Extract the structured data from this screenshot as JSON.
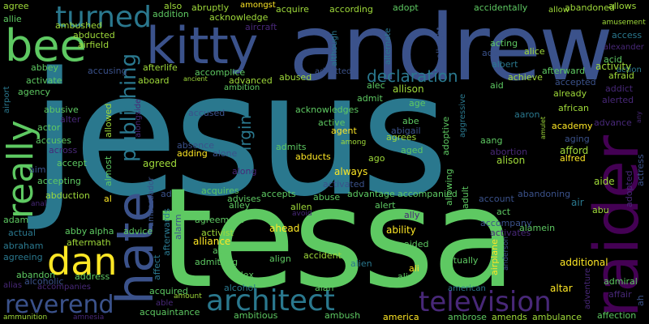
{
  "background": "#000000",
  "palette": {
    "teal": "#2a788e",
    "green": "#5ec962",
    "indigo": "#3b528b",
    "purple": "#440154",
    "yellow": "#fde725",
    "lime": "#9fda3a",
    "aqua": "#22a884",
    "plum": "#482878"
  },
  "words": [
    "jesus",
    "tessa",
    "andrew",
    "raider",
    "kitty",
    "hate",
    "bee",
    "really",
    "dan",
    "turned",
    "publishing",
    "architect",
    "television",
    "reverend",
    "declaration",
    "virgin",
    "agree",
    "allie",
    "ambushed",
    "abducted",
    "airfield",
    "abbey",
    "activate",
    "agency",
    "abusive",
    "alter",
    "accuses",
    "across",
    "actor",
    "aim",
    "accepting",
    "abduction",
    "adam",
    "anal",
    "actual",
    "abraham",
    "agreeing",
    "abandon",
    "alias",
    "alcoholic",
    "ammunition",
    "amnesia",
    "abby",
    "alpha",
    "advice",
    "aftermath",
    "address",
    "accompanies",
    "affect",
    "afterwards",
    "alarm",
    "acquired",
    "able",
    "amount",
    "acquaintance",
    "ambitious",
    "ambassador",
    "alcohol",
    "alex",
    "admitting",
    "ace",
    "alliance",
    "activist",
    "agreement",
    "ahead",
    "alley",
    "accident",
    "align",
    "alan",
    "alien",
    "ambush",
    "america",
    "addition",
    "also",
    "abruptly",
    "amongst",
    "acknowledge",
    "acquire",
    "according",
    "adopt",
    "accidentally",
    "allow",
    "abandoned",
    "allows",
    "amusement",
    "access",
    "aircraft",
    "although",
    "albright",
    "alternate",
    "acting",
    "add",
    "alice",
    "acid",
    "alexander",
    "action",
    "albert",
    "afterlife",
    "accusing",
    "accomplice",
    "aboard",
    "advanced",
    "ancient",
    "ambition",
    "abused",
    "admitted",
    "alec",
    "allison",
    "achieve",
    "afterward",
    "aid",
    "accepted",
    "activity",
    "afraid",
    "addict",
    "already",
    "alerted",
    "aggressive",
    "alongside",
    "accused",
    "acknowledges",
    "admit",
    "active",
    "abe",
    "abigail",
    "age",
    "adoptive",
    "agent",
    "aaron",
    "african",
    "advance",
    "amulet",
    "any",
    "academy",
    "aging",
    "absence",
    "adding",
    "admits",
    "abducts",
    "agrees",
    "aged",
    "among",
    "aang",
    "alison",
    "alfred",
    "abortion",
    "afford",
    "alone",
    "agreed",
    "almost",
    "allowed",
    "always",
    "ago",
    "allowing",
    "adult",
    "actress",
    "adopted",
    "ad",
    "acquires",
    "advises",
    "accepts",
    "activated",
    "abandoning",
    "aide",
    "along",
    "allen",
    "abuse",
    "advantage",
    "accompanied",
    "account",
    "air",
    "abu",
    "avoid",
    "alert",
    "ally",
    "act",
    "alamein",
    "activates",
    "accompany",
    "ability",
    "additional",
    "aided",
    "anderson",
    "airplane",
    "ali",
    "actually",
    "alive",
    "admiral",
    "affair",
    "american",
    "adventure",
    "altar",
    "ambrose",
    "amends",
    "ambulance",
    "affection",
    "ah",
    "airport",
    "al",
    "accept",
    "al"
  ]
}
